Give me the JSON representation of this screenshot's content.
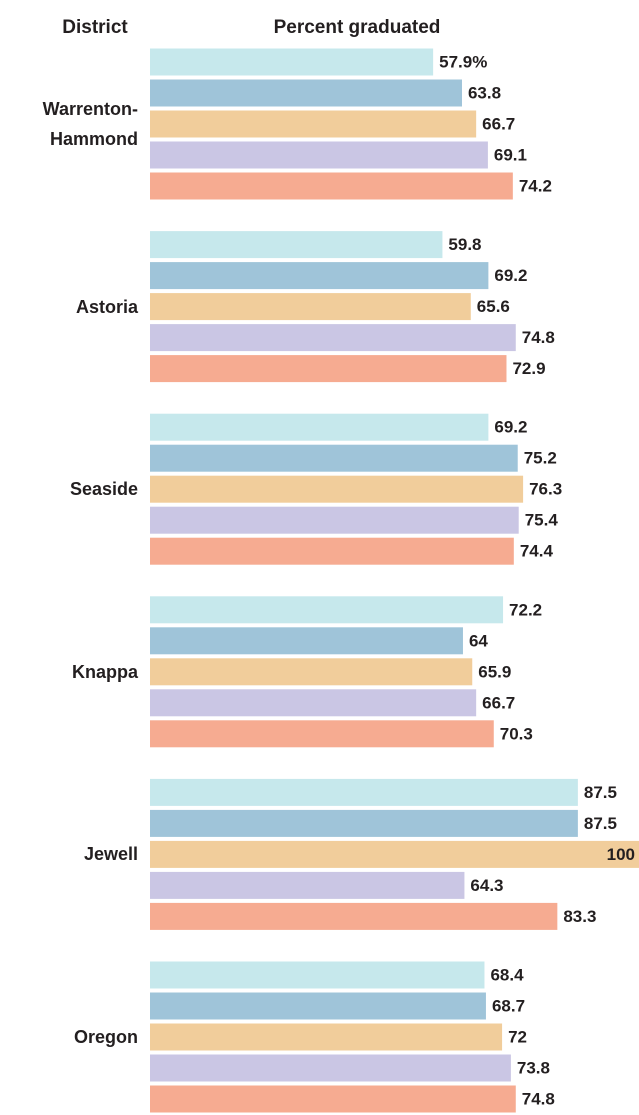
{
  "chart_data": {
    "type": "bar",
    "orientation": "horizontal",
    "ylabel": "District",
    "xlabel": "Percent graduated",
    "categories": [
      "Warrenton-\nHammond",
      "Astoria",
      "Seaside",
      "Knappa",
      "Jewell",
      "Oregon"
    ],
    "xlim": [
      0,
      100
    ],
    "series": [
      {
        "color": "#c6e8ec",
        "values": [
          57.9,
          59.8,
          69.2,
          72.2,
          87.5,
          68.4
        ],
        "value_labels": [
          "57.9%",
          "59.8",
          "69.2",
          "72.2",
          "87.5",
          "68.4"
        ]
      },
      {
        "color": "#9fc4d9",
        "values": [
          63.8,
          69.2,
          75.2,
          64,
          87.5,
          68.7
        ]
      },
      {
        "color": "#f1cd9b",
        "values": [
          66.7,
          65.6,
          76.3,
          65.9,
          100,
          72
        ]
      },
      {
        "color": "#cac6e4",
        "values": [
          69.1,
          74.8,
          75.4,
          66.7,
          64.3,
          73.8
        ]
      },
      {
        "color": "#f6ab91",
        "values": [
          74.2,
          72.9,
          74.4,
          70.3,
          83.3,
          74.8
        ]
      }
    ]
  }
}
